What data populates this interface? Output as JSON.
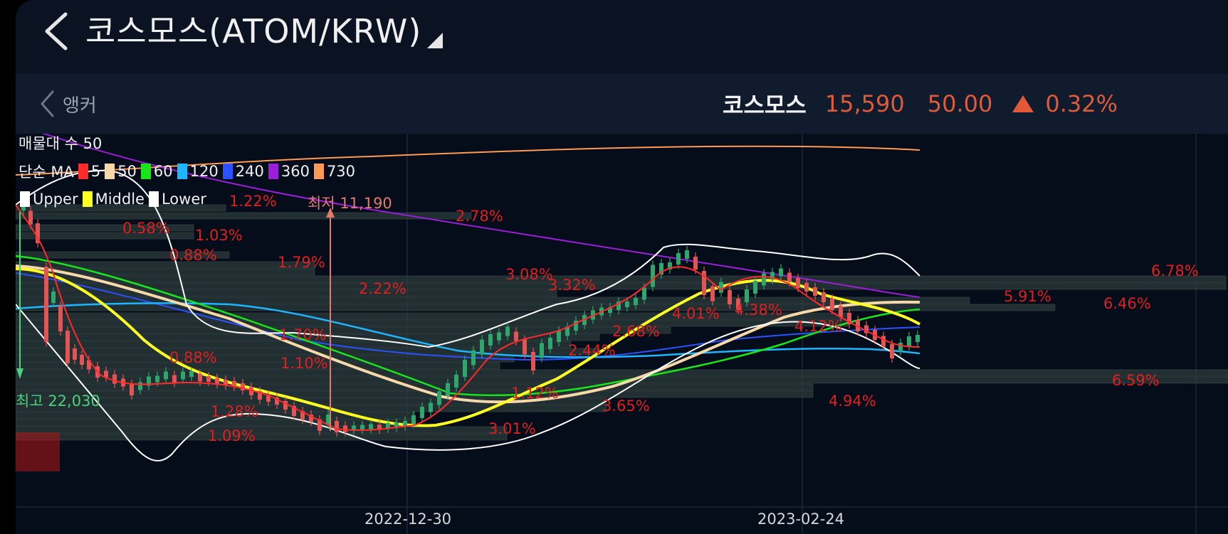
{
  "header": {
    "title": "코스모스(ATOM/KRW)",
    "back_icon": "chevron-left-icon",
    "caret_icon": "triangle-down-right-icon"
  },
  "subbar": {
    "anchor_label": "앵커",
    "quote_name": "코스모스",
    "price": "15,590",
    "change": "50.00",
    "change_pct": "0.32%",
    "direction": "up",
    "up_color": "#e05a38"
  },
  "legend": {
    "volume_profile": "매물대 수 50",
    "ma_label": "단순 MA",
    "ma_periods": [
      {
        "label": "5",
        "color": "#ff2a2a"
      },
      {
        "label": "50",
        "color": "#f7d8a8"
      },
      {
        "label": "60",
        "color": "#19e619"
      },
      {
        "label": "120",
        "color": "#1eb6ff"
      },
      {
        "label": "240",
        "color": "#2a52ff"
      },
      {
        "label": "360",
        "color": "#9b1ed8"
      },
      {
        "label": "730",
        "color": "#ff9a55"
      }
    ],
    "bands": [
      {
        "label": "Upper",
        "color": "#ffffff"
      },
      {
        "label": "Middle",
        "color": "#ffff22"
      },
      {
        "label": "Lower",
        "color": "#ffffff"
      }
    ]
  },
  "annotations": {
    "low_label": "최저 11,190",
    "high_label": "최고 22,030"
  },
  "x_axis": {
    "dates": [
      "2022-12-30",
      "2023-02-24"
    ]
  },
  "chart_data": {
    "type": "candlestick",
    "symbol": "ATOM/KRW",
    "last_price": 15590,
    "low_marker": 11190,
    "high_marker": 22030,
    "volume_profile_bins": 50,
    "volume_profile_percent_labels": [
      "1.22%",
      "2.78%",
      "0.58%",
      "1.03%",
      "0.88%",
      "1.79%",
      "3.08%",
      "3.32%",
      "2.22%",
      "6.78%",
      "5.91%",
      "6.46%",
      "4.01%",
      "4.38%",
      "4.12%",
      "2.68%",
      "2.44%",
      "1.70%",
      "0.88%",
      "1.10%",
      "6.59%",
      "1.12%",
      "3.65%",
      "4.94%",
      "1.28%",
      "1.09%",
      "3.01%"
    ],
    "ma_periods": [
      5,
      50,
      60,
      120,
      240,
      360,
      730
    ],
    "bollinger": [
      "Upper",
      "Middle",
      "Lower"
    ],
    "x_ticks": [
      "2022-12-30",
      "2023-02-24"
    ]
  }
}
